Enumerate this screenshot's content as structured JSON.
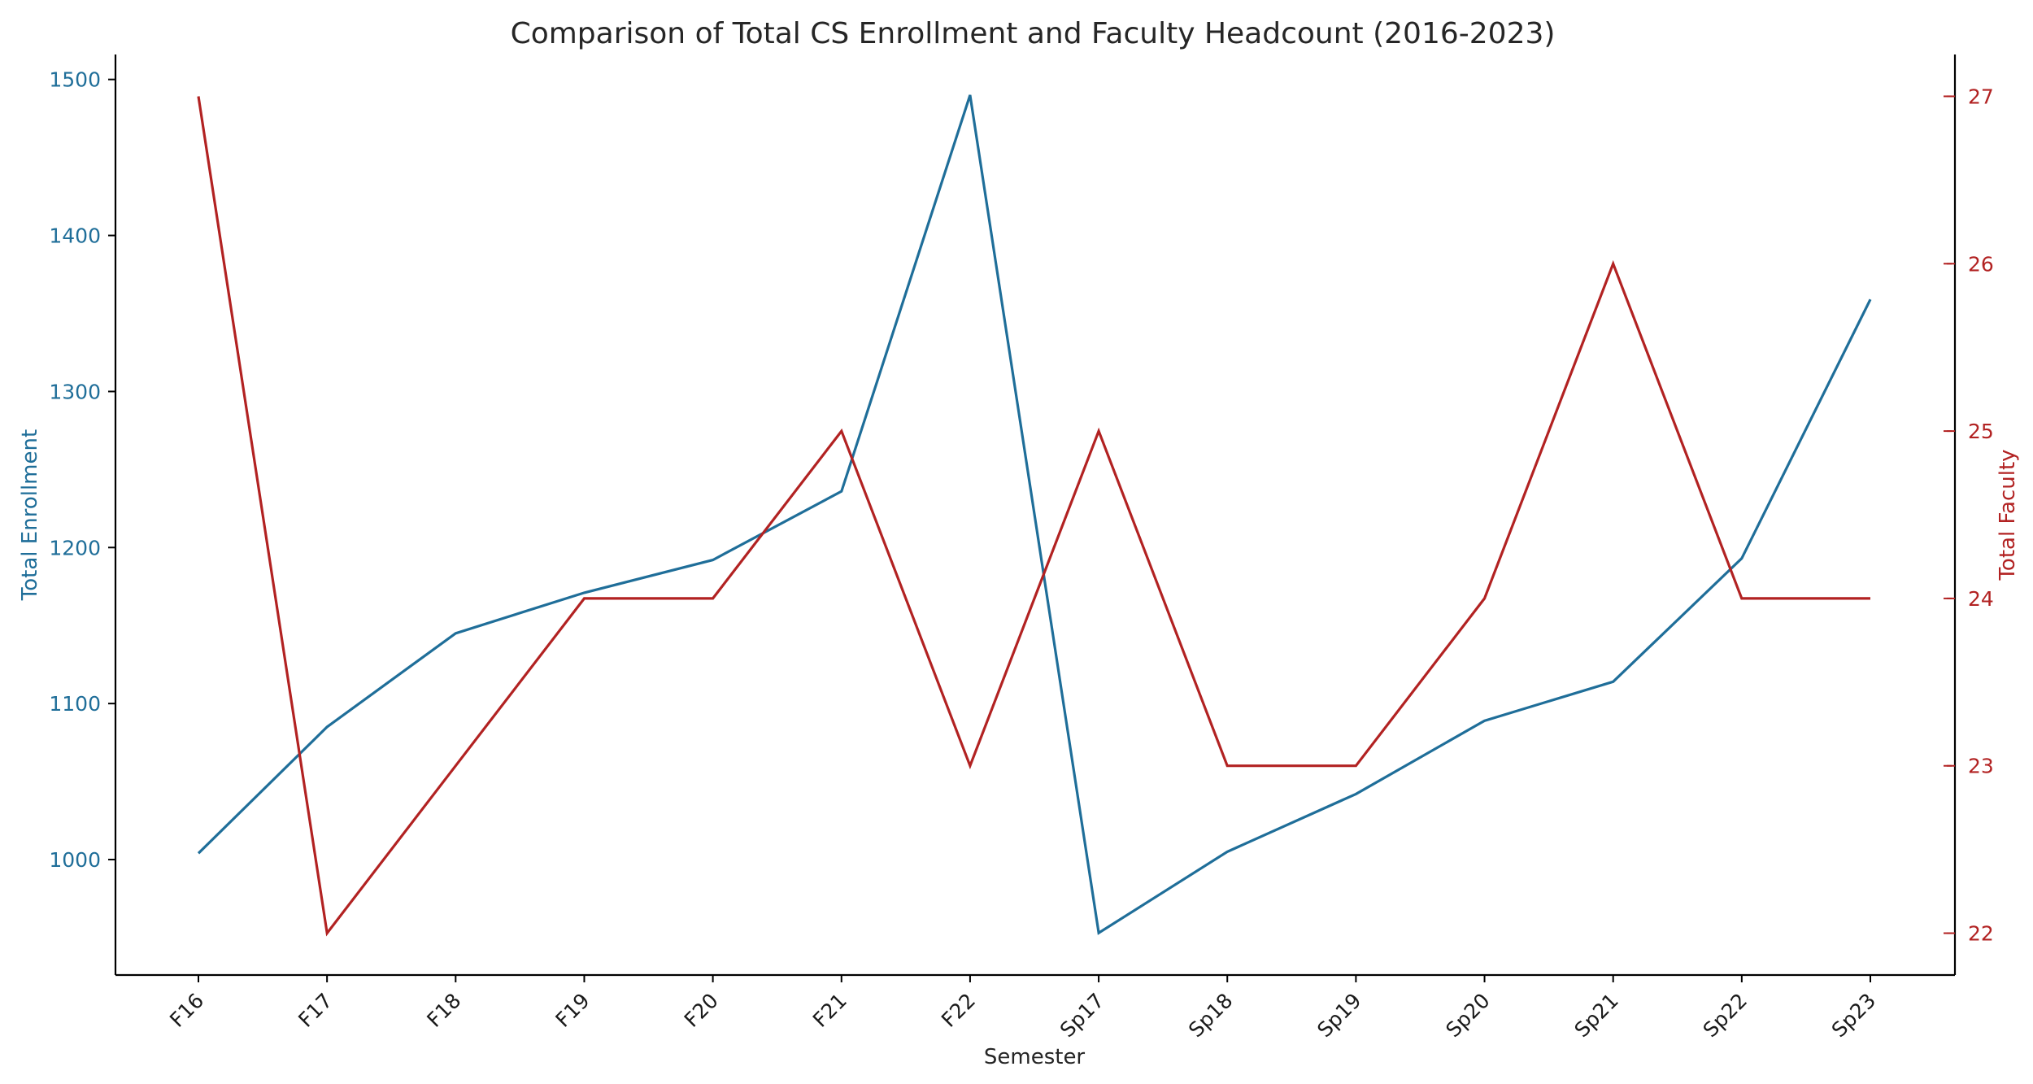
{
  "chart_data": {
    "type": "line",
    "title": "Comparison of Total CS Enrollment and Faculty Headcount (2016-2023)",
    "xlabel": "Semester",
    "categories": [
      "F16",
      "F17",
      "F18",
      "F19",
      "F20",
      "F21",
      "F22",
      "Sp17",
      "Sp18",
      "Sp19",
      "Sp20",
      "Sp21",
      "Sp22",
      "Sp23"
    ],
    "y_left": {
      "label": "Total Enrollment",
      "ticks": [
        1000,
        1100,
        1200,
        1300,
        1400,
        1500
      ],
      "ylim": [
        926,
        1516
      ],
      "color": "#1f6e99"
    },
    "y_right": {
      "label": "Total Faculty",
      "ticks": [
        22,
        23,
        24,
        25,
        26,
        27
      ],
      "ylim": [
        21.75,
        27.25
      ],
      "color": "#b22222"
    },
    "series": [
      {
        "axis": "left",
        "color": "#1f6e99",
        "values": [
          1004,
          1085,
          1145,
          1171,
          1192,
          1236,
          1490,
          953,
          1005,
          1042,
          1089,
          1114,
          1193,
          1359
        ]
      },
      {
        "axis": "right",
        "color": "#b22222",
        "values": [
          27,
          22,
          23,
          24,
          24,
          25,
          23,
          25,
          23,
          23,
          24,
          26,
          24,
          24
        ]
      }
    ],
    "grid": false,
    "legend": "none"
  }
}
